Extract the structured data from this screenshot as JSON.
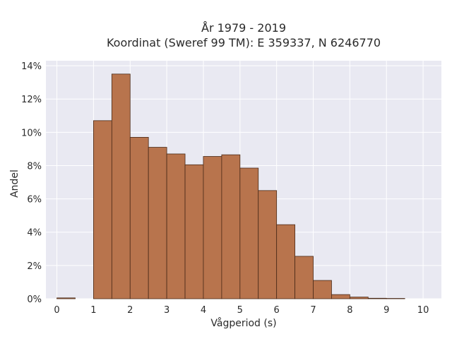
{
  "chart_data": {
    "type": "bar",
    "title_line1": "År 1979 - 2019",
    "title_line2": "Koordinat (Sweref 99 TM): E 359337, N 6246770",
    "xlabel": "Vågperiod (s)",
    "ylabel": "Andel",
    "bin_width": 0.5,
    "bins": [
      {
        "x0": 0.0,
        "x1": 0.5,
        "value": 0.05
      },
      {
        "x0": 1.0,
        "x1": 1.5,
        "value": 10.7
      },
      {
        "x0": 1.5,
        "x1": 2.0,
        "value": 13.5
      },
      {
        "x0": 2.0,
        "x1": 2.5,
        "value": 9.7
      },
      {
        "x0": 2.5,
        "x1": 3.0,
        "value": 9.1
      },
      {
        "x0": 3.0,
        "x1": 3.5,
        "value": 8.7
      },
      {
        "x0": 3.5,
        "x1": 4.0,
        "value": 8.05
      },
      {
        "x0": 4.0,
        "x1": 4.5,
        "value": 8.55
      },
      {
        "x0": 4.5,
        "x1": 5.0,
        "value": 8.65
      },
      {
        "x0": 5.0,
        "x1": 5.5,
        "value": 7.85
      },
      {
        "x0": 5.5,
        "x1": 6.0,
        "value": 6.5
      },
      {
        "x0": 6.0,
        "x1": 6.5,
        "value": 4.45
      },
      {
        "x0": 6.5,
        "x1": 7.0,
        "value": 2.55
      },
      {
        "x0": 7.0,
        "x1": 7.5,
        "value": 1.1
      },
      {
        "x0": 7.5,
        "x1": 8.0,
        "value": 0.25
      },
      {
        "x0": 8.0,
        "x1": 8.5,
        "value": 0.1
      },
      {
        "x0": 8.5,
        "x1": 9.0,
        "value": 0.03
      },
      {
        "x0": 9.0,
        "x1": 9.5,
        "value": 0.02
      }
    ],
    "xlim": [
      -0.3,
      10.5
    ],
    "ylim": [
      0,
      14.3
    ],
    "xticks": [
      0,
      1,
      2,
      3,
      4,
      5,
      6,
      7,
      8,
      9,
      10
    ],
    "xtick_labels": [
      "0",
      "1",
      "2",
      "3",
      "4",
      "5",
      "6",
      "7",
      "8",
      "9",
      "10"
    ],
    "yticks": [
      0,
      2,
      4,
      6,
      8,
      10,
      12,
      14
    ],
    "ytick_labels": [
      "0%",
      "2%",
      "4%",
      "6%",
      "8%",
      "10%",
      "12%",
      "14%"
    ],
    "grid": true,
    "colors": {
      "bar_fill": "#b8744d",
      "bar_stroke": "#4a2a18",
      "plot_bg": "#e9e9f2",
      "grid": "#ffffff"
    }
  }
}
